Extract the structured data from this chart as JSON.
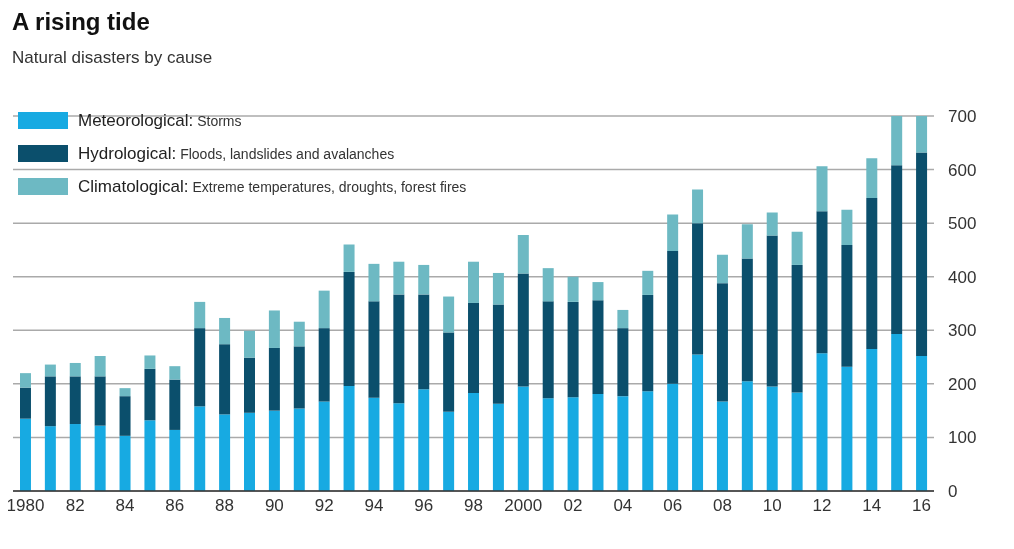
{
  "chart_data": {
    "type": "bar",
    "title": "A rising tide",
    "subtitle": "Natural disasters by cause",
    "categories": [
      "1980",
      null,
      "82",
      null,
      "84",
      null,
      "86",
      null,
      "88",
      null,
      "90",
      null,
      "92",
      null,
      "94",
      null,
      "96",
      null,
      "98",
      null,
      "2000",
      null,
      "02",
      null,
      "04",
      null,
      "06",
      null,
      "08",
      null,
      "10",
      null,
      "12",
      null,
      "14",
      null,
      "16"
    ],
    "stacked": true,
    "series": [
      {
        "name": "Meteorological: Storms",
        "color": "#17aae2",
        "values": [
          135,
          121,
          125,
          122,
          103,
          132,
          114,
          158,
          143,
          146,
          150,
          154,
          167,
          196,
          174,
          164,
          190,
          148,
          183,
          163,
          195,
          173,
          175,
          181,
          177,
          186,
          200,
          255,
          167,
          205,
          195,
          184,
          257,
          232,
          265,
          293,
          252
        ]
      },
      {
        "name": "Hydrological: Floods, landslides and avalanches",
        "color": "#0b4f6c",
        "values": [
          58,
          93,
          89,
          92,
          74,
          96,
          94,
          146,
          131,
          103,
          117,
          116,
          137,
          213,
          180,
          203,
          177,
          148,
          168,
          185,
          211,
          181,
          178,
          175,
          127,
          180,
          248,
          245,
          221,
          229,
          282,
          238,
          265,
          227,
          282,
          315,
          380
        ]
      },
      {
        "name": "Climatological: Extreme temperatures, droughts, forest fires",
        "color": "#6db9c3",
        "values": [
          27,
          22,
          25,
          38,
          15,
          25,
          25,
          49,
          49,
          50,
          70,
          46,
          70,
          51,
          70,
          61,
          55,
          67,
          77,
          59,
          72,
          62,
          47,
          34,
          34,
          45,
          68,
          63,
          53,
          64,
          43,
          62,
          84,
          66,
          74,
          92,
          68
        ]
      }
    ],
    "ylim": [
      0,
      700
    ],
    "yticks": [
      0,
      100,
      200,
      300,
      400,
      500,
      600,
      700
    ],
    "grid": "y",
    "legend": "top left"
  }
}
